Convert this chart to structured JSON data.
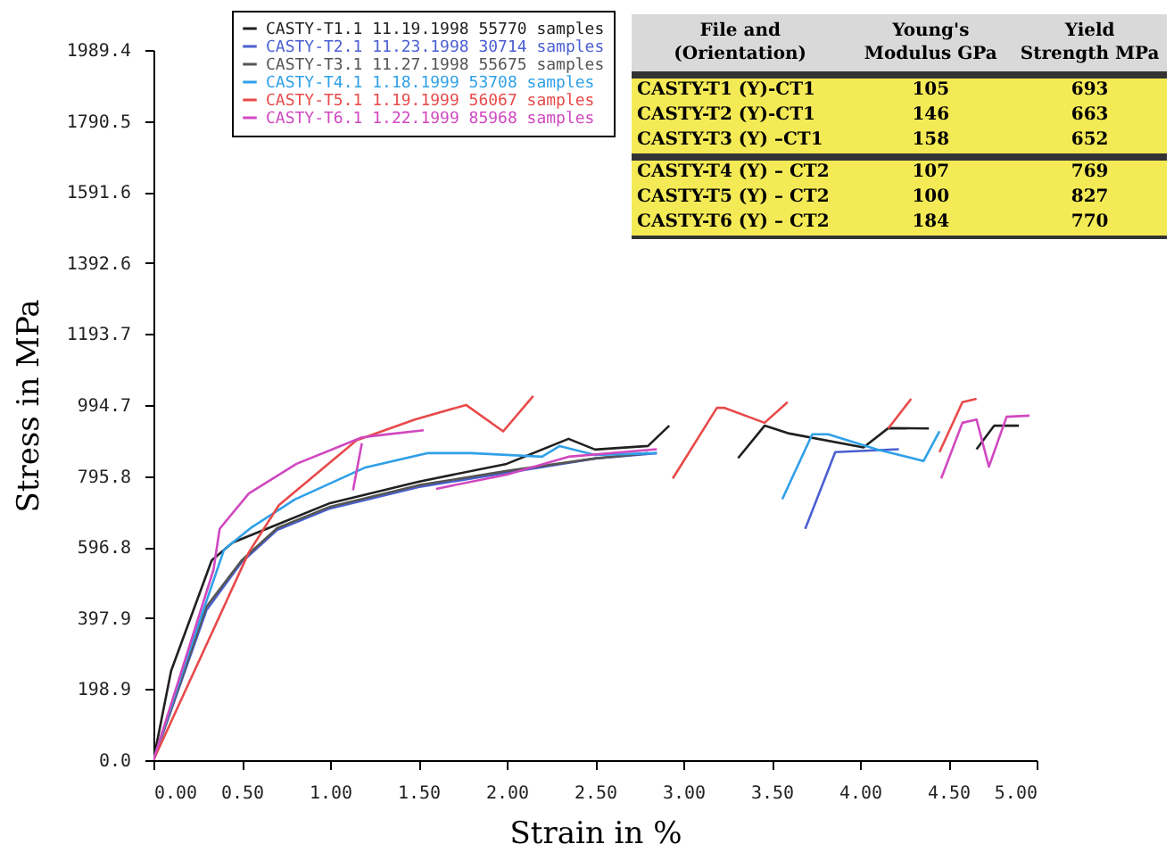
{
  "chart_data": {
    "type": "line",
    "xlabel": "Strain in %",
    "ylabel": "Stress in MPa",
    "xlim": [
      0,
      5
    ],
    "ylim": [
      0,
      1989.4
    ],
    "xticks": [
      {
        "value": 0,
        "label": "0.00"
      },
      {
        "value": 0.5,
        "label": "0.50"
      },
      {
        "value": 1,
        "label": "1.00"
      },
      {
        "value": 1.5,
        "label": "1.50"
      },
      {
        "value": 2,
        "label": "2.00"
      },
      {
        "value": 2.5,
        "label": "2.50"
      },
      {
        "value": 3,
        "label": "3.00"
      },
      {
        "value": 3.5,
        "label": "3.50"
      },
      {
        "value": 4,
        "label": "4.00"
      },
      {
        "value": 4.5,
        "label": "4.50"
      },
      {
        "value": 5,
        "label": "5.00"
      }
    ],
    "yticks": [
      {
        "value": 0,
        "label": "0.0"
      },
      198.9,
      397.9,
      596.8,
      795.8,
      994.7,
      1193.7,
      1392.6,
      1591.6,
      1790.5,
      1989.4
    ],
    "grid": false,
    "legend": "top left",
    "marker": "none",
    "line_style": "solid",
    "series": [
      {
        "name": "CASTY-T1.1 11.19.1998 55770 samples",
        "color": "#202020",
        "x": [
          0,
          0.1,
          0.33,
          0.45,
          0.7,
          1.0,
          1.5,
          2.0,
          2.35,
          2.5,
          2.8,
          2.92,
          null,
          3.31,
          3.46,
          3.6,
          4.02,
          4.16,
          4.39,
          null,
          4.66,
          4.76,
          4.9
        ],
        "values": [
          0,
          250,
          560,
          610,
          660,
          720,
          780,
          830,
          900,
          870,
          880,
          937,
          null,
          846,
          937,
          915,
          876,
          930,
          929,
          null,
          871,
          937,
          937
        ]
      },
      {
        "name": "CASTY-T2.1 11.23.1998 30714 samples",
        "color": "#4a5fd0",
        "x": [
          0,
          0.3,
          0.5,
          0.7,
          1.0,
          1.5,
          2.0,
          2.5,
          2.85,
          null,
          3.69,
          3.86,
          4.22
        ],
        "values": [
          0,
          420,
          555,
          645,
          705,
          765,
          805,
          845,
          860,
          null,
          648,
          863,
          871
        ]
      },
      {
        "name": "CASTY-T3.1 11.27.1998 55675 samples",
        "color": "#555555",
        "x": [
          0,
          0.3,
          0.5,
          0.7,
          1.0,
          1.5,
          2.0,
          2.5,
          2.8
        ],
        "values": [
          0,
          430,
          560,
          650,
          710,
          770,
          810,
          845,
          860
        ]
      },
      {
        "name": "CASTY-T4.1 1.18.1999 53708 samples",
        "color": "#30a0e8",
        "x": [
          0,
          0.2,
          0.4,
          0.55,
          0.8,
          1.2,
          1.55,
          1.8,
          2.2,
          2.3,
          2.5,
          2.85,
          null,
          3.56,
          3.73,
          3.82,
          4.1,
          4.36,
          4.45
        ],
        "values": [
          0,
          300,
          590,
          650,
          730,
          820,
          860,
          860,
          850,
          880,
          855,
          860,
          null,
          731,
          913,
          913,
          870,
          838,
          921
        ]
      },
      {
        "name": "CASTY-T5.1 1.19.1999 56067 samples",
        "color": "#e84a4a",
        "x": [
          0,
          0.54,
          0.71,
          1.15,
          1.48,
          1.77,
          1.98,
          2.15,
          null,
          2.94,
          3.19,
          3.23,
          3.46,
          3.59,
          null,
          4.16,
          4.29,
          null,
          4.45,
          4.58,
          4.66
        ],
        "values": [
          0,
          582,
          714,
          896,
          954,
          995,
          921,
          1020,
          null,
          789,
          987,
          987,
          945,
          1003,
          null,
          929,
          1012,
          null,
          863,
          1003,
          1012
        ]
      },
      {
        "name": "CASTY-T6.1 1.22.1999 85968 samples",
        "color": "#d048c0",
        "x": [
          0,
          0.34,
          0.375,
          0.54,
          0.81,
          1.18,
          1.31,
          1.53,
          null,
          1.13,
          1.18,
          null,
          1.6,
          2.0,
          2.35,
          2.85,
          null,
          4.46,
          4.58,
          4.66,
          4.73,
          4.83,
          4.96
        ],
        "values": [
          0,
          533,
          648,
          747,
          830,
          904,
          912,
          924,
          null,
          756,
          888,
          null,
          760,
          800,
          850,
          871,
          null,
          789,
          945,
          954,
          822,
          962,
          965
        ]
      }
    ],
    "annotations": [
      "File and (Orientation)",
      "Young's Modulus GPa",
      "Yield Strength MPa",
      "CASTY-T1 (Y)-CT1",
      "105",
      "693",
      "CASTY-T2 (Y)-CT1",
      "146",
      "663",
      "CASTY-T3 (Y) –CT1",
      "158",
      "652",
      "CASTY-T4 (Y) – CT2",
      "107",
      "769",
      "CASTY-T5 (Y) – CT2",
      "100",
      "827",
      "CASTY-T6 (Y) – CT2",
      "184",
      "770"
    ]
  }
}
